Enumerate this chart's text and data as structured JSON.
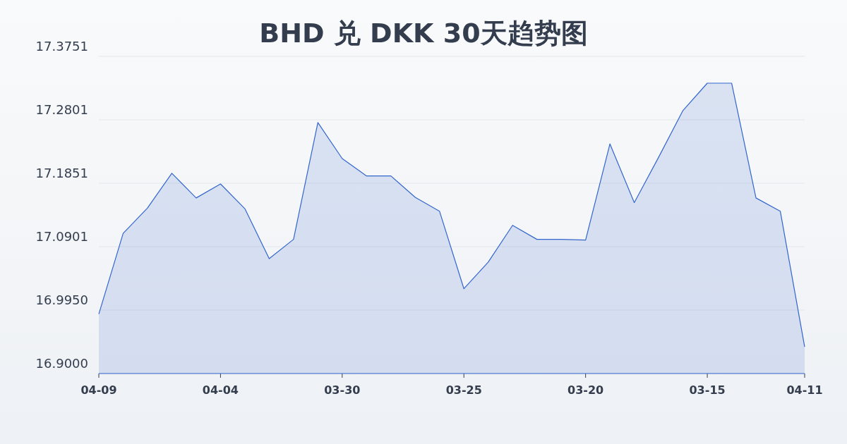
{
  "chart_data": {
    "type": "area",
    "title": "BHD 兑 DKK 30天趋势图",
    "categories": [
      "04-09",
      null,
      null,
      null,
      null,
      "04-04",
      null,
      null,
      null,
      null,
      "03-30",
      null,
      null,
      null,
      null,
      "03-25",
      null,
      null,
      null,
      null,
      "03-20",
      null,
      null,
      null,
      null,
      "03-15",
      null,
      null,
      null,
      "04-11"
    ],
    "series": [
      {
        "color": "#3366cc",
        "values": [
          16.989,
          17.11,
          17.148,
          17.2,
          17.163,
          17.184,
          17.147,
          17.072,
          17.101,
          17.276,
          17.222,
          17.196,
          17.196,
          17.164,
          17.143,
          17.027,
          17.067,
          17.122,
          17.101,
          17.101,
          17.1,
          17.244,
          17.156,
          17.224,
          17.294,
          17.335,
          17.335,
          17.163,
          17.143,
          16.94
        ]
      }
    ],
    "ylim": [
      16.9,
      17.3751
    ],
    "yticks": [
      {
        "value": 16.9,
        "label": "16.9000"
      },
      {
        "value": 16.995,
        "label": "16.9950"
      },
      {
        "value": 17.0901,
        "label": "17.0901"
      },
      {
        "value": 17.1851,
        "label": "17.1851"
      },
      {
        "value": 17.2801,
        "label": "17.2801"
      },
      {
        "value": 17.3751,
        "label": "17.3751"
      }
    ],
    "grid": "y",
    "marker": "none",
    "line_style": "solid"
  }
}
